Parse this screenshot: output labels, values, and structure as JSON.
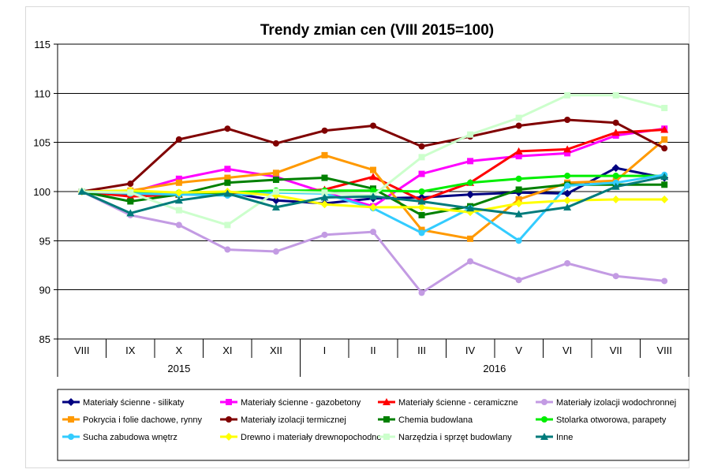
{
  "chart_data": {
    "type": "line",
    "title": "Trendy zmian cen (VIII 2015=100)",
    "categories": [
      "VIII",
      "IX",
      "X",
      "XI",
      "XII",
      "I",
      "II",
      "III",
      "IV",
      "V",
      "VI",
      "VII",
      "VIII"
    ],
    "year_labels": [
      {
        "label": "2015",
        "from": 0,
        "to": 4
      },
      {
        "label": "2016",
        "from": 5,
        "to": 12
      }
    ],
    "ylim": [
      85,
      115
    ],
    "yticks": [
      85,
      90,
      95,
      100,
      105,
      110,
      115
    ],
    "grid": true,
    "legend_position": "bottom",
    "series": [
      {
        "name": "Materiały ścienne - silikaty",
        "color": "#000080",
        "marker": "diamond",
        "values": [
          100,
          99.6,
          99.8,
          99.9,
          99.1,
          98.8,
          99.3,
          99.4,
          99.7,
          99.9,
          99.8,
          102.4,
          101.4
        ]
      },
      {
        "name": "Materiały ścienne - gazobetony",
        "color": "#ff00ff",
        "marker": "square",
        "values": [
          100,
          99.9,
          101.3,
          102.3,
          101.5,
          99.9,
          98.5,
          101.8,
          103.1,
          103.6,
          103.9,
          105.7,
          106.4
        ]
      },
      {
        "name": "Materiały ścienne - ceramiczne",
        "color": "#ff0000",
        "marker": "triangle",
        "values": [
          100,
          99.5,
          99.7,
          99.9,
          99.9,
          100.2,
          101.5,
          99.1,
          100.9,
          104.1,
          104.3,
          106.0,
          106.3
        ]
      },
      {
        "name": "Materiały izolacji wodochronnej",
        "color": "#c39be3",
        "marker": "circle",
        "values": [
          100,
          97.6,
          96.6,
          94.1,
          93.9,
          95.6,
          95.9,
          89.7,
          92.9,
          91.0,
          92.7,
          91.4,
          90.9
        ]
      },
      {
        "name": "Pokrycia i folie dachowe, rynny",
        "color": "#ff9900",
        "marker": "square",
        "values": [
          100,
          100.1,
          100.9,
          101.4,
          101.9,
          103.7,
          102.2,
          96.1,
          95.2,
          99.2,
          100.9,
          101.1,
          105.3
        ]
      },
      {
        "name": "Materiały izolacji termicznej",
        "color": "#800000",
        "marker": "circle",
        "values": [
          100,
          100.8,
          105.3,
          106.4,
          104.9,
          106.2,
          106.7,
          104.6,
          105.6,
          106.7,
          107.3,
          107.0,
          104.4
        ]
      },
      {
        "name": "Chemia budowlana",
        "color": "#008000",
        "marker": "square",
        "values": [
          100,
          99.0,
          99.7,
          100.9,
          101.2,
          101.4,
          100.3,
          97.6,
          98.5,
          100.2,
          100.7,
          100.7,
          100.7
        ]
      },
      {
        "name": "Stolarka otworowa, parapety",
        "color": "#00ee00",
        "marker": "circle",
        "values": [
          100,
          99.9,
          99.9,
          99.9,
          100.1,
          100.1,
          100.1,
          100.0,
          100.9,
          101.3,
          101.6,
          101.6,
          101.6
        ]
      },
      {
        "name": "Sucha zabudowa wnętrz",
        "color": "#33ccff",
        "marker": "circle",
        "values": [
          100,
          99.8,
          99.7,
          99.6,
          99.9,
          99.8,
          98.3,
          95.8,
          98.3,
          95.0,
          100.6,
          100.9,
          101.7
        ]
      },
      {
        "name": "Drewno i materiały drewnopochodne",
        "color": "#ffff00",
        "marker": "diamond",
        "values": [
          100,
          100.1,
          99.9,
          100.0,
          99.6,
          98.7,
          98.4,
          98.4,
          97.9,
          98.8,
          99.1,
          99.2,
          99.2
        ]
      },
      {
        "name": "Narzędzia i sprzęt budowlany",
        "color": "#ccffcc",
        "marker": "square",
        "values": [
          100,
          99.9,
          98.1,
          96.6,
          100.0,
          99.9,
          99.6,
          103.5,
          105.8,
          107.5,
          109.8,
          109.8,
          108.5
        ]
      },
      {
        "name": "Inne",
        "color": "#007b7b",
        "marker": "triangle",
        "values": [
          100,
          97.8,
          99.1,
          99.8,
          98.4,
          99.4,
          99.5,
          99.0,
          98.3,
          97.7,
          98.4,
          100.5,
          101.5
        ]
      }
    ]
  }
}
